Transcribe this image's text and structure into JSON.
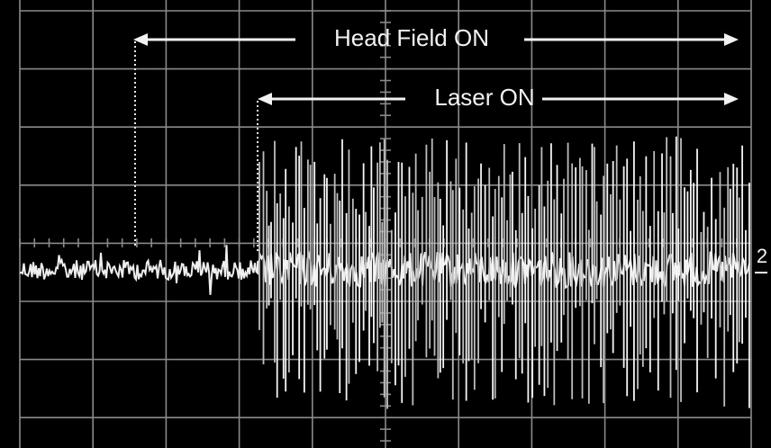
{
  "annotations": {
    "head_field": "Head Field ON",
    "laser": "Laser ON",
    "channel_marker": "2"
  }
}
